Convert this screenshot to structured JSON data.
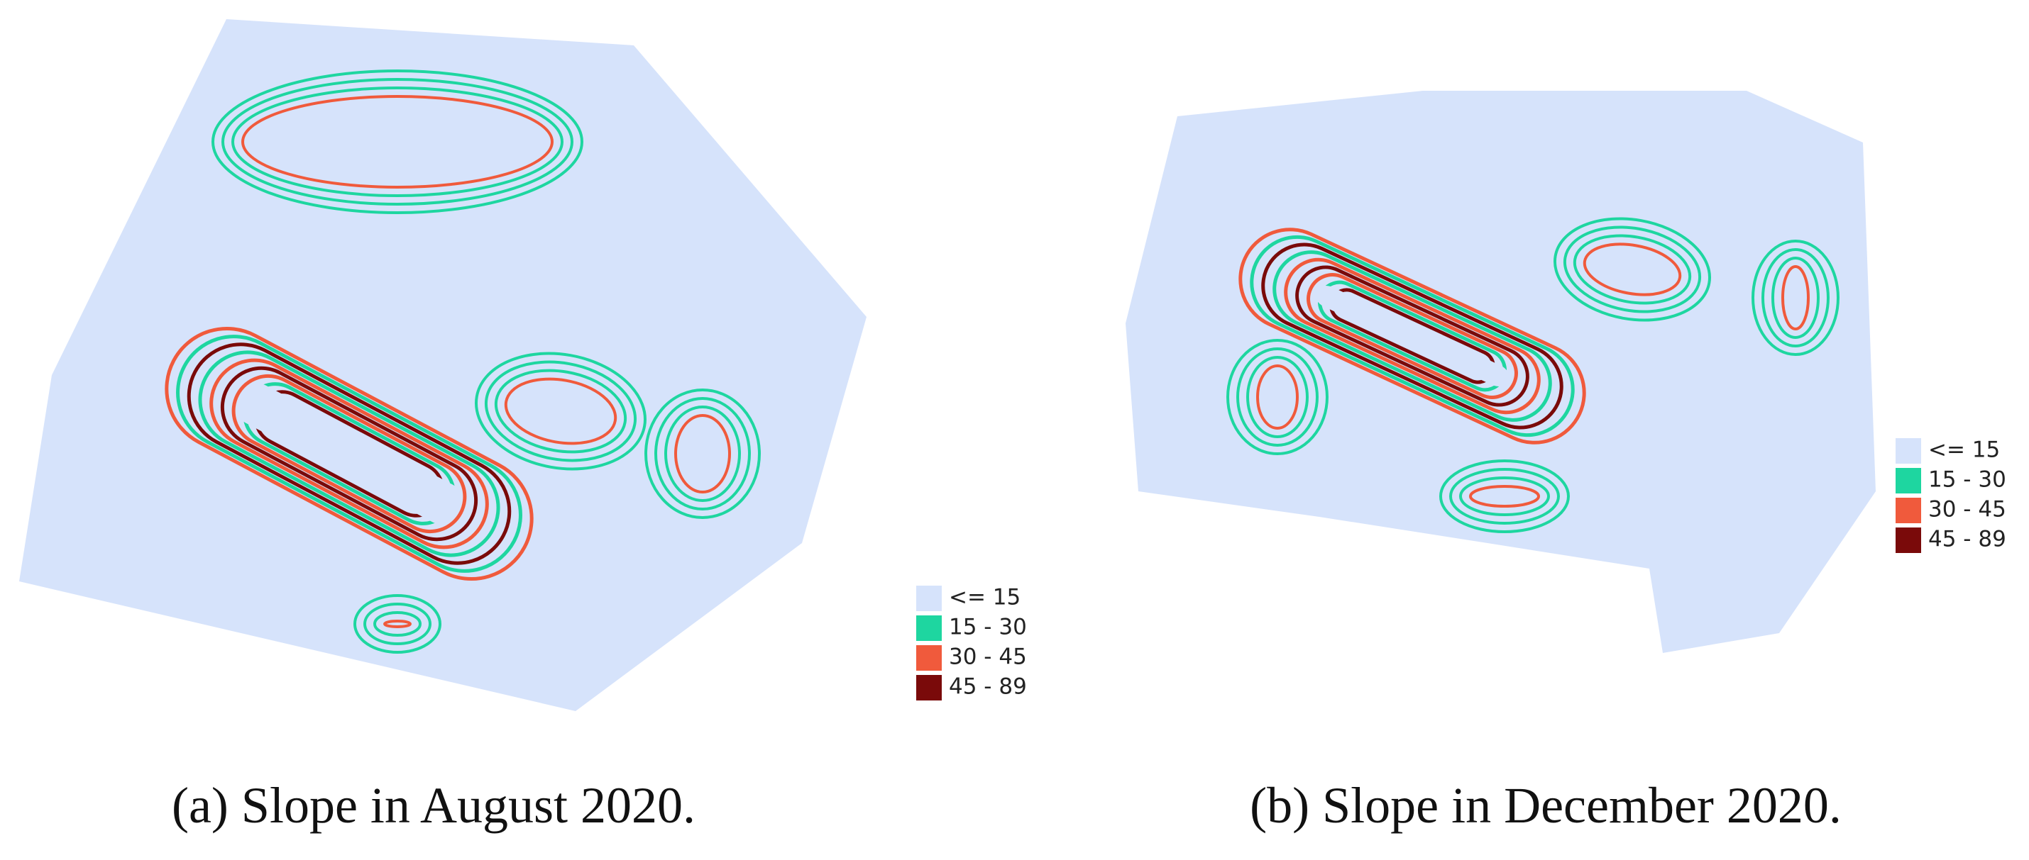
{
  "panels": [
    {
      "label": "(a)",
      "caption": "Slope in August 2020.",
      "legend": [
        {
          "label": "<= 15",
          "color": "#d6e3fb"
        },
        {
          "label": "15 - 30",
          "color": "#1ed6a0"
        },
        {
          "label": "30 - 45",
          "color": "#f05a3c"
        },
        {
          "label": "45 - 89",
          "color": "#7a0a0a"
        }
      ]
    },
    {
      "label": "(b)",
      "caption": "Slope in December 2020.",
      "legend": [
        {
          "label": "<= 15",
          "color": "#d6e3fb"
        },
        {
          "label": "15 - 30",
          "color": "#1ed6a0"
        },
        {
          "label": "30 - 45",
          "color": "#f05a3c"
        },
        {
          "label": "45 - 89",
          "color": "#7a0a0a"
        }
      ]
    }
  ]
}
